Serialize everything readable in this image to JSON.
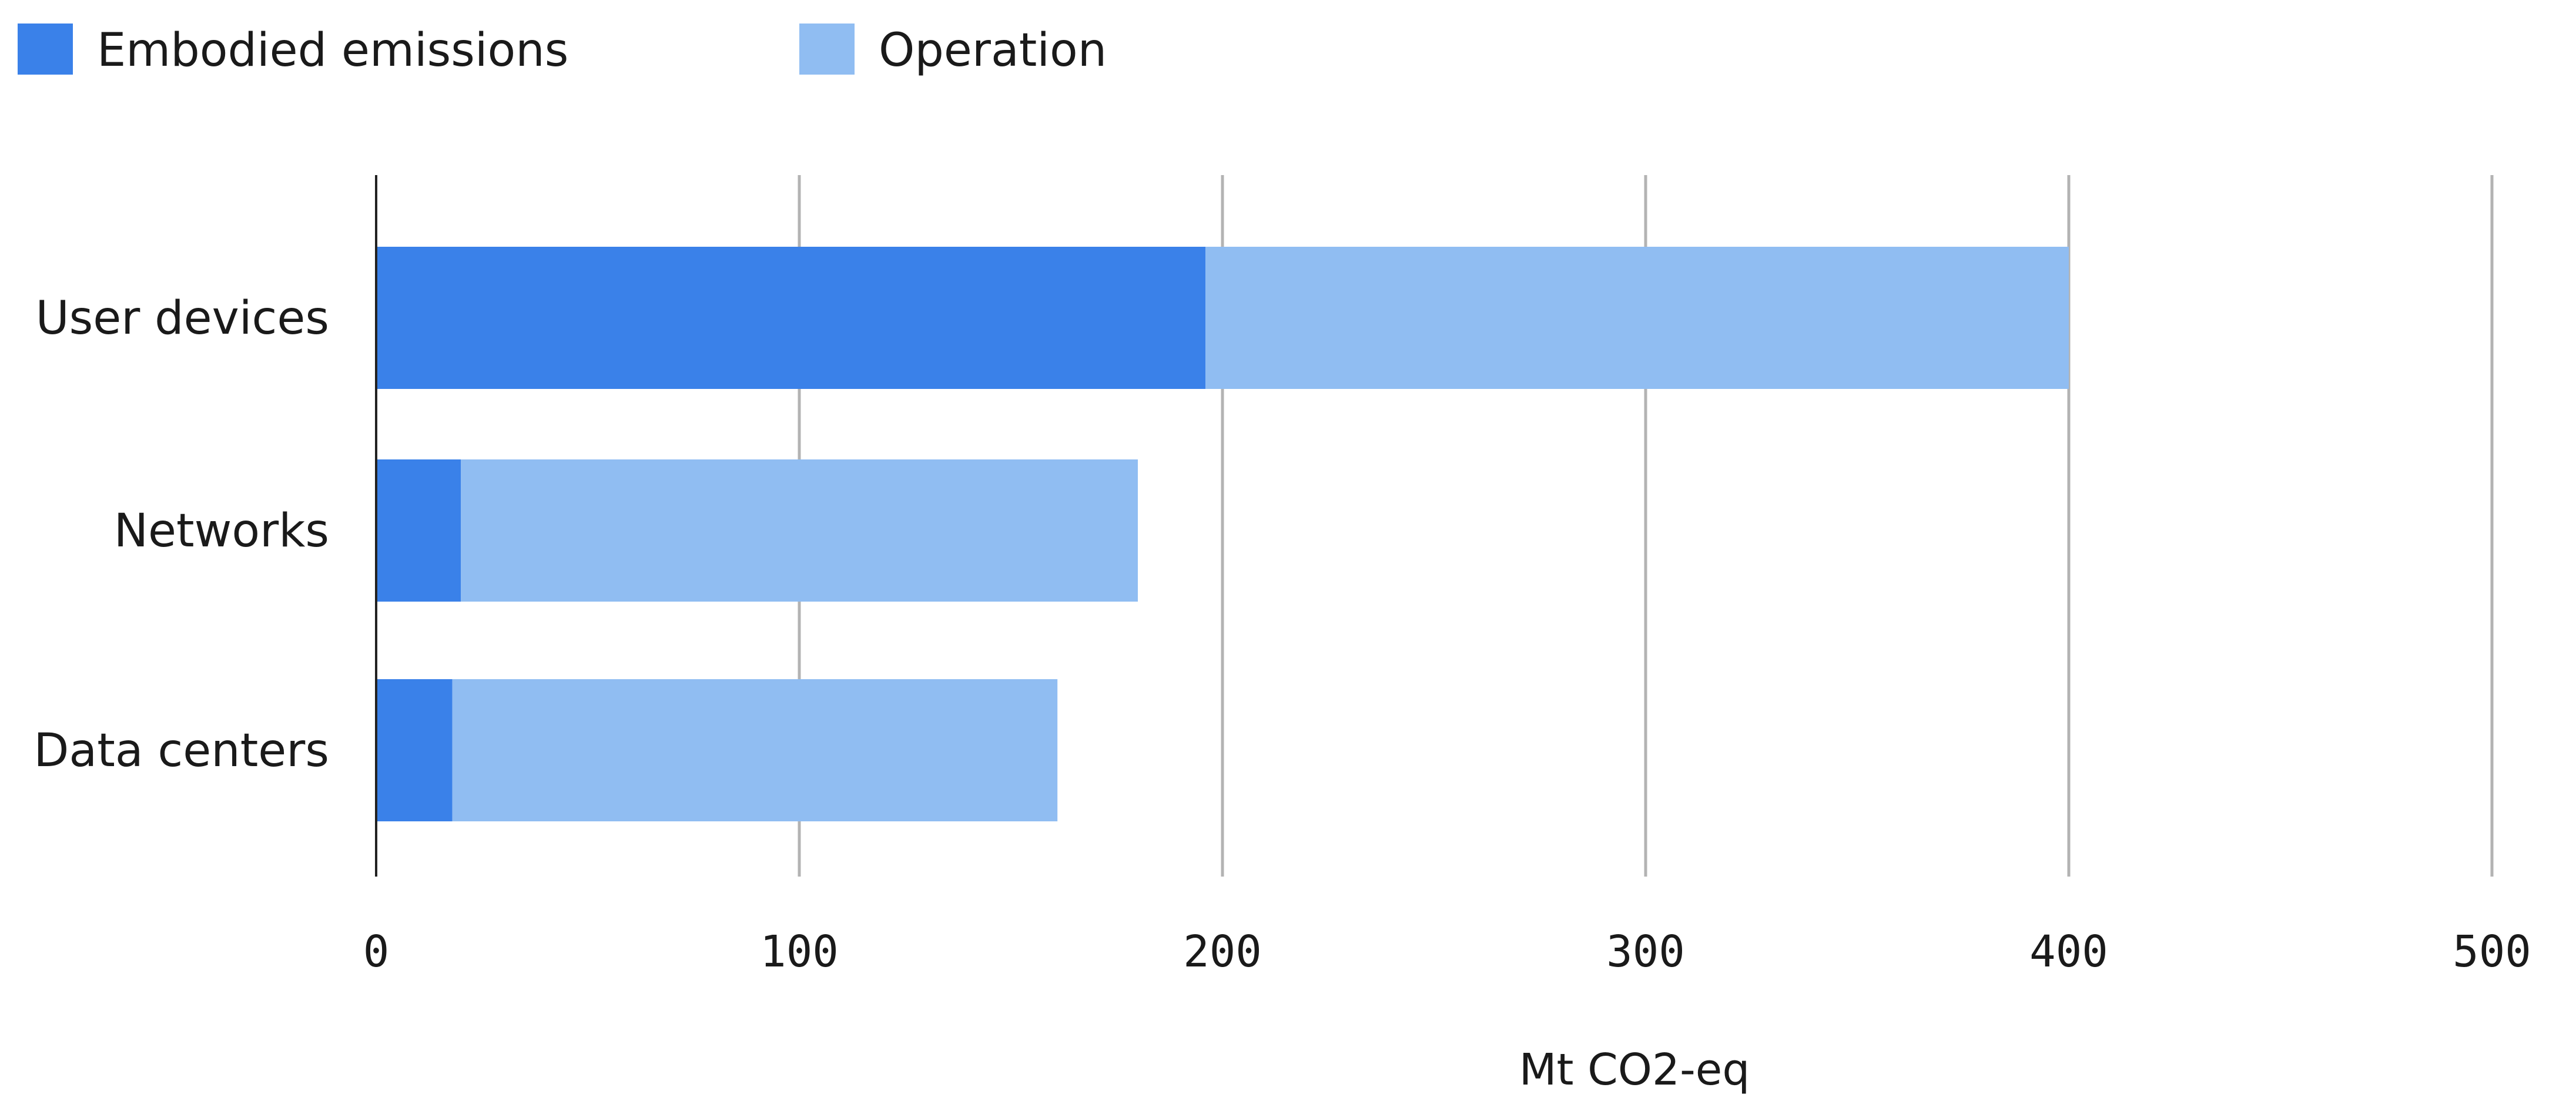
{
  "chart_data": {
    "type": "bar",
    "orientation": "horizontal",
    "stacked": true,
    "categories": [
      "User devices",
      "Networks",
      "Data centers"
    ],
    "series": [
      {
        "name": "Embodied emissions",
        "values": [
          196,
          20,
          18
        ],
        "color": "#3a81e9"
      },
      {
        "name": "Operation",
        "values": [
          204,
          160,
          143
        ],
        "color": "#90bdf2"
      }
    ],
    "xlabel": "Mt CO2-eq",
    "ylabel": "",
    "xlim": [
      0,
      500
    ],
    "xticks": [
      "0",
      "100",
      "200",
      "300",
      "400",
      "500"
    ],
    "grid": "vertical",
    "legend_position": "top-left"
  }
}
